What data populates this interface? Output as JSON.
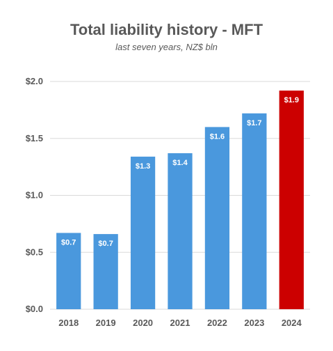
{
  "chart_data": {
    "type": "bar",
    "title": "Total liability history - MFT",
    "subtitle": "last seven years, NZ$ bln",
    "xlabel": "",
    "ylabel": "",
    "categories": [
      "2018",
      "2019",
      "2020",
      "2021",
      "2022",
      "2023",
      "2024"
    ],
    "values": [
      0.67,
      0.66,
      1.34,
      1.37,
      1.6,
      1.72,
      1.92
    ],
    "data_labels": [
      "$0.7",
      "$0.7",
      "$1.3",
      "$1.4",
      "$1.6",
      "$1.7",
      "$1.9"
    ],
    "ylim": [
      0,
      2.0
    ],
    "yticks": [
      0,
      0.5,
      1.0,
      1.5,
      2.0
    ],
    "ytick_labels": [
      "$0.0",
      "$0.5",
      "$1.0",
      "$1.5",
      "$2.0"
    ],
    "grid": true,
    "legend": "none",
    "colors": {
      "default_bar": "#4a98dd",
      "highlight_bar": "#cc0000",
      "grid": "#d9d9d9",
      "text": "#595959"
    },
    "highlight_index": 6
  }
}
